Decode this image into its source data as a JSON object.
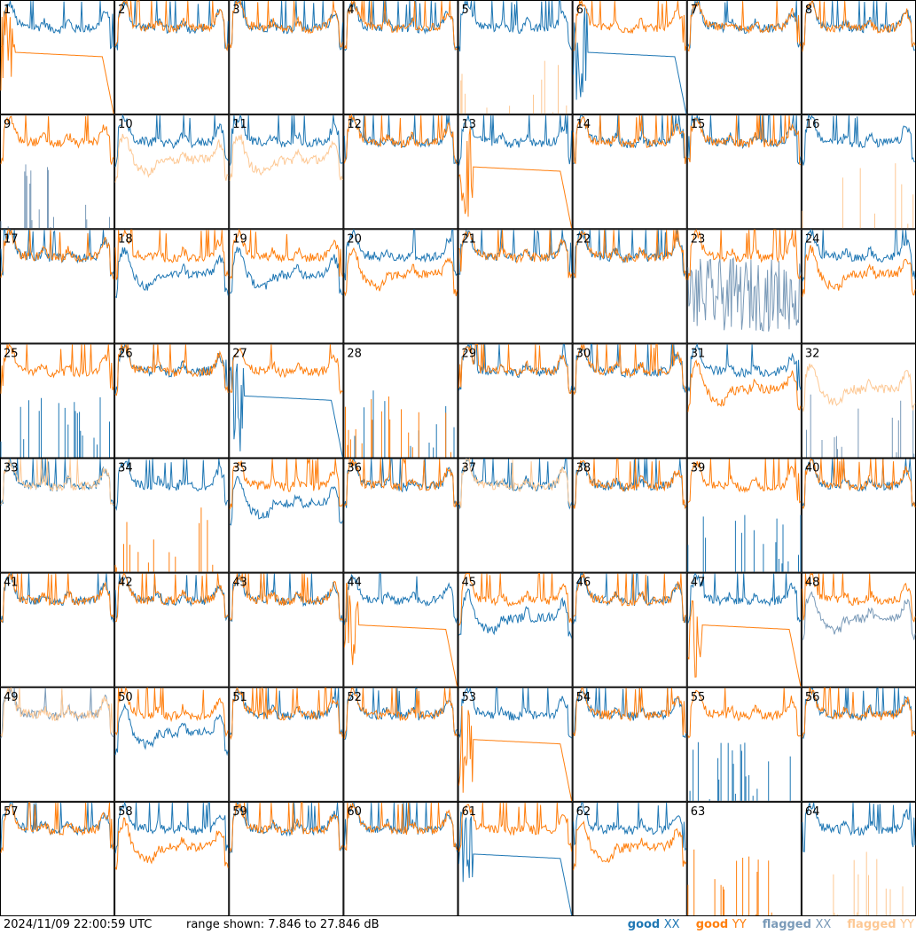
{
  "footer": {
    "timestamp": "2024/11/09 22:00:59 UTC",
    "range_text": "range shown: 7.846 to 27.846 dB"
  },
  "legend": [
    {
      "status": "good",
      "pol": "XX",
      "color": "#1f77b4"
    },
    {
      "status": "good",
      "pol": "YY",
      "color": "#ff7f0e"
    },
    {
      "status": "flagged",
      "pol": "XX",
      "color": "#7a9ab8"
    },
    {
      "status": "flagged",
      "pol": "YY",
      "color": "#fdc894"
    }
  ],
  "chart_data": {
    "type": "line",
    "layout": "small-multiples 8x8",
    "ylim": [
      7.846,
      27.846
    ],
    "y_unit": "dB",
    "grid": false,
    "legend_placement": "bottom-right",
    "panels": [
      {
        "label": "1",
        "xx": {
          "shape": "std",
          "flag": false
        },
        "yy": {
          "shape": "droop",
          "flag": false
        }
      },
      {
        "label": "2",
        "xx": {
          "shape": "std",
          "flag": false
        },
        "yy": {
          "shape": "std",
          "flag": false
        }
      },
      {
        "label": "3",
        "xx": {
          "shape": "std",
          "flag": false
        },
        "yy": {
          "shape": "std",
          "flag": false
        }
      },
      {
        "label": "4",
        "xx": {
          "shape": "std",
          "flag": false
        },
        "yy": {
          "shape": "std",
          "flag": false
        }
      },
      {
        "label": "5",
        "xx": {
          "shape": "std",
          "flag": false
        },
        "yy": {
          "shape": "spikes",
          "flag": true
        }
      },
      {
        "label": "6",
        "xx": {
          "shape": "droop",
          "flag": false
        },
        "yy": {
          "shape": "std",
          "flag": false
        }
      },
      {
        "label": "7",
        "xx": {
          "shape": "std",
          "flag": false
        },
        "yy": {
          "shape": "std",
          "flag": false
        }
      },
      {
        "label": "8",
        "xx": {
          "shape": "std",
          "flag": false
        },
        "yy": {
          "shape": "std",
          "flag": false
        }
      },
      {
        "label": "9",
        "xx": {
          "shape": "spikes",
          "flag": true
        },
        "yy": {
          "shape": "std",
          "flag": false
        }
      },
      {
        "label": "10",
        "xx": {
          "shape": "std",
          "flag": false
        },
        "yy": {
          "shape": "lowstd",
          "flag": true
        }
      },
      {
        "label": "11",
        "xx": {
          "shape": "std",
          "flag": false
        },
        "yy": {
          "shape": "lowstd",
          "flag": true
        }
      },
      {
        "label": "12",
        "xx": {
          "shape": "std",
          "flag": false
        },
        "yy": {
          "shape": "std",
          "flag": false
        }
      },
      {
        "label": "13",
        "xx": {
          "shape": "std",
          "flag": false
        },
        "yy": {
          "shape": "droop",
          "flag": false
        }
      },
      {
        "label": "14",
        "xx": {
          "shape": "std",
          "flag": false
        },
        "yy": {
          "shape": "std",
          "flag": false
        }
      },
      {
        "label": "15",
        "xx": {
          "shape": "std",
          "flag": false
        },
        "yy": {
          "shape": "std",
          "flag": false
        }
      },
      {
        "label": "16",
        "xx": {
          "shape": "std",
          "flag": false
        },
        "yy": {
          "shape": "spikes",
          "flag": true
        }
      },
      {
        "label": "17",
        "xx": {
          "shape": "std",
          "flag": false
        },
        "yy": {
          "shape": "std",
          "flag": false
        }
      },
      {
        "label": "18",
        "xx": {
          "shape": "lowstd",
          "flag": false
        },
        "yy": {
          "shape": "std",
          "flag": false
        }
      },
      {
        "label": "19",
        "xx": {
          "shape": "lowstd",
          "flag": false
        },
        "yy": {
          "shape": "std",
          "flag": false
        }
      },
      {
        "label": "20",
        "xx": {
          "shape": "std",
          "flag": false
        },
        "yy": {
          "shape": "lowstd",
          "flag": false
        }
      },
      {
        "label": "21",
        "xx": {
          "shape": "std",
          "flag": false
        },
        "yy": {
          "shape": "std",
          "flag": false
        }
      },
      {
        "label": "22",
        "xx": {
          "shape": "std",
          "flag": false
        },
        "yy": {
          "shape": "std",
          "flag": false
        }
      },
      {
        "label": "23",
        "xx": {
          "shape": "noise",
          "flag": true
        },
        "yy": {
          "shape": "std",
          "flag": false
        }
      },
      {
        "label": "24",
        "xx": {
          "shape": "std",
          "flag": false
        },
        "yy": {
          "shape": "lowstd",
          "flag": false
        }
      },
      {
        "label": "25",
        "xx": {
          "shape": "spikes",
          "flag": false
        },
        "yy": {
          "shape": "std",
          "flag": false
        }
      },
      {
        "label": "26",
        "xx": {
          "shape": "std",
          "flag": false
        },
        "yy": {
          "shape": "std",
          "flag": false
        }
      },
      {
        "label": "27",
        "xx": {
          "shape": "droop",
          "flag": false
        },
        "yy": {
          "shape": "std",
          "flag": false
        }
      },
      {
        "label": "28",
        "xx": {
          "shape": "spikes",
          "flag": false
        },
        "yy": {
          "shape": "spikes",
          "flag": false
        }
      },
      {
        "label": "29",
        "xx": {
          "shape": "std",
          "flag": false
        },
        "yy": {
          "shape": "std",
          "flag": false
        }
      },
      {
        "label": "30",
        "xx": {
          "shape": "std",
          "flag": false
        },
        "yy": {
          "shape": "std",
          "flag": false
        }
      },
      {
        "label": "31",
        "xx": {
          "shape": "std",
          "flag": false
        },
        "yy": {
          "shape": "lowstd",
          "flag": false
        }
      },
      {
        "label": "32",
        "xx": {
          "shape": "spikes",
          "flag": true
        },
        "yy": {
          "shape": "lowstd",
          "flag": true
        }
      },
      {
        "label": "33",
        "xx": {
          "shape": "std",
          "flag": false
        },
        "yy": {
          "shape": "std",
          "flag": true
        }
      },
      {
        "label": "34",
        "xx": {
          "shape": "std",
          "flag": false
        },
        "yy": {
          "shape": "spikes",
          "flag": false
        }
      },
      {
        "label": "35",
        "xx": {
          "shape": "lowstd",
          "flag": false
        },
        "yy": {
          "shape": "std",
          "flag": false
        }
      },
      {
        "label": "36",
        "xx": {
          "shape": "std",
          "flag": false
        },
        "yy": {
          "shape": "std",
          "flag": false
        }
      },
      {
        "label": "37",
        "xx": {
          "shape": "std",
          "flag": false
        },
        "yy": {
          "shape": "std",
          "flag": true
        }
      },
      {
        "label": "38",
        "xx": {
          "shape": "std",
          "flag": false
        },
        "yy": {
          "shape": "std",
          "flag": false
        }
      },
      {
        "label": "39",
        "xx": {
          "shape": "spikes",
          "flag": false
        },
        "yy": {
          "shape": "std",
          "flag": false
        }
      },
      {
        "label": "40",
        "xx": {
          "shape": "std",
          "flag": false
        },
        "yy": {
          "shape": "std",
          "flag": false
        }
      },
      {
        "label": "41",
        "xx": {
          "shape": "std",
          "flag": false
        },
        "yy": {
          "shape": "std",
          "flag": false
        }
      },
      {
        "label": "42",
        "xx": {
          "shape": "std",
          "flag": false
        },
        "yy": {
          "shape": "std",
          "flag": false
        }
      },
      {
        "label": "43",
        "xx": {
          "shape": "std",
          "flag": false
        },
        "yy": {
          "shape": "std",
          "flag": false
        }
      },
      {
        "label": "44",
        "xx": {
          "shape": "std",
          "flag": false
        },
        "yy": {
          "shape": "droop",
          "flag": false
        }
      },
      {
        "label": "45",
        "xx": {
          "shape": "lowstd",
          "flag": false
        },
        "yy": {
          "shape": "std",
          "flag": false
        }
      },
      {
        "label": "46",
        "xx": {
          "shape": "std",
          "flag": false
        },
        "yy": {
          "shape": "std",
          "flag": false
        }
      },
      {
        "label": "47",
        "xx": {
          "shape": "std",
          "flag": false
        },
        "yy": {
          "shape": "droop",
          "flag": false
        }
      },
      {
        "label": "48",
        "xx": {
          "shape": "lowstd",
          "flag": true
        },
        "yy": {
          "shape": "std",
          "flag": false
        }
      },
      {
        "label": "49",
        "xx": {
          "shape": "std",
          "flag": true
        },
        "yy": {
          "shape": "std",
          "flag": true
        }
      },
      {
        "label": "50",
        "xx": {
          "shape": "lowstd",
          "flag": false
        },
        "yy": {
          "shape": "std",
          "flag": false
        }
      },
      {
        "label": "51",
        "xx": {
          "shape": "std",
          "flag": false
        },
        "yy": {
          "shape": "std",
          "flag": false
        }
      },
      {
        "label": "52",
        "xx": {
          "shape": "std",
          "flag": false
        },
        "yy": {
          "shape": "std",
          "flag": false
        }
      },
      {
        "label": "53",
        "xx": {
          "shape": "std",
          "flag": false
        },
        "yy": {
          "shape": "droop",
          "flag": false
        }
      },
      {
        "label": "54",
        "xx": {
          "shape": "std",
          "flag": false
        },
        "yy": {
          "shape": "std",
          "flag": false
        }
      },
      {
        "label": "55",
        "xx": {
          "shape": "spikes",
          "flag": false
        },
        "yy": {
          "shape": "std",
          "flag": false
        }
      },
      {
        "label": "56",
        "xx": {
          "shape": "std",
          "flag": false
        },
        "yy": {
          "shape": "std",
          "flag": false
        }
      },
      {
        "label": "57",
        "xx": {
          "shape": "std",
          "flag": false
        },
        "yy": {
          "shape": "std",
          "flag": false
        }
      },
      {
        "label": "58",
        "xx": {
          "shape": "std",
          "flag": false
        },
        "yy": {
          "shape": "lowstd",
          "flag": false
        }
      },
      {
        "label": "59",
        "xx": {
          "shape": "std",
          "flag": false
        },
        "yy": {
          "shape": "std",
          "flag": false
        }
      },
      {
        "label": "60",
        "xx": {
          "shape": "std",
          "flag": false
        },
        "yy": {
          "shape": "std",
          "flag": false
        }
      },
      {
        "label": "61",
        "xx": {
          "shape": "droop",
          "flag": false
        },
        "yy": {
          "shape": "std",
          "flag": false
        }
      },
      {
        "label": "62",
        "xx": {
          "shape": "std",
          "flag": false
        },
        "yy": {
          "shape": "lowstd",
          "flag": false
        }
      },
      {
        "label": "63",
        "xx": {
          "shape": "none",
          "flag": false
        },
        "yy": {
          "shape": "spikes",
          "flag": false
        }
      },
      {
        "label": "64",
        "xx": {
          "shape": "std",
          "flag": false
        },
        "yy": {
          "shape": "spikes",
          "flag": true
        }
      }
    ]
  }
}
